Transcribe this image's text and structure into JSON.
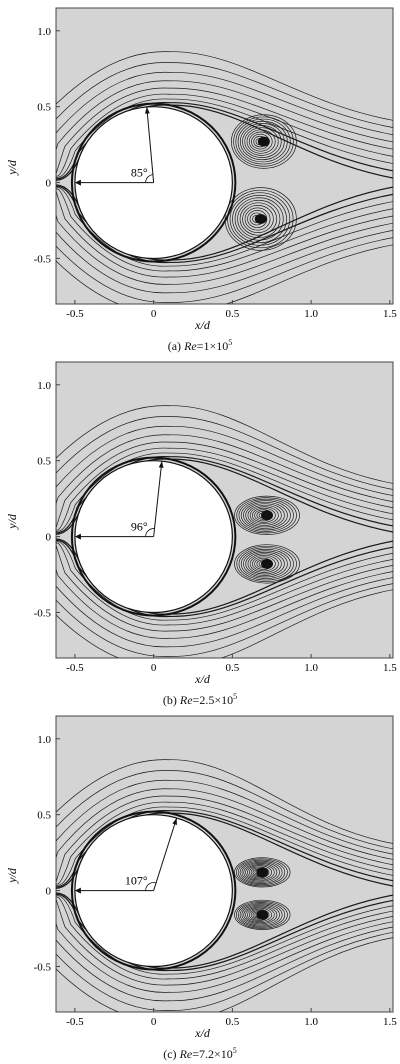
{
  "panels": [
    {
      "caption_prefix": "(a) ",
      "caption_re": "Re",
      "caption_value": "=1×10",
      "caption_exp": "5",
      "angle_label": "85°",
      "xlabel": "x/d",
      "ylabel": "y/d",
      "xticks": [
        "-0.5",
        "0",
        "0.5",
        "1.0",
        "1.5"
      ],
      "yticks": [
        "1.0",
        "0.5",
        "0",
        "-0.5"
      ],
      "xlim": [
        -0.62,
        1.52
      ],
      "ylim": [
        -0.8,
        1.15
      ]
    },
    {
      "caption_prefix": "(b) ",
      "caption_re": "Re",
      "caption_value": "=2.5×10",
      "caption_exp": "5",
      "angle_label": "96°",
      "xlabel": "x/d",
      "ylabel": "y/d",
      "xticks": [
        "-0.5",
        "0",
        "0.5",
        "1.0",
        "1.5"
      ],
      "yticks": [
        "1.0",
        "0.5",
        "0",
        "-0.5"
      ],
      "xlim": [
        -0.62,
        1.52
      ],
      "ylim": [
        -0.8,
        1.15
      ]
    },
    {
      "caption_prefix": "(c) ",
      "caption_re": "Re",
      "caption_value": "=7.2×10",
      "caption_exp": "5",
      "angle_label": "107°",
      "xlabel": "x/d",
      "ylabel": "y/d",
      "xticks": [
        "-0.5",
        "0",
        "0.5",
        "1.0",
        "1.5"
      ],
      "yticks": [
        "1.0",
        "0.5",
        "0",
        "-0.5"
      ],
      "xlim": [
        -0.62,
        1.52
      ],
      "ylim": [
        -0.8,
        1.15
      ]
    }
  ]
}
